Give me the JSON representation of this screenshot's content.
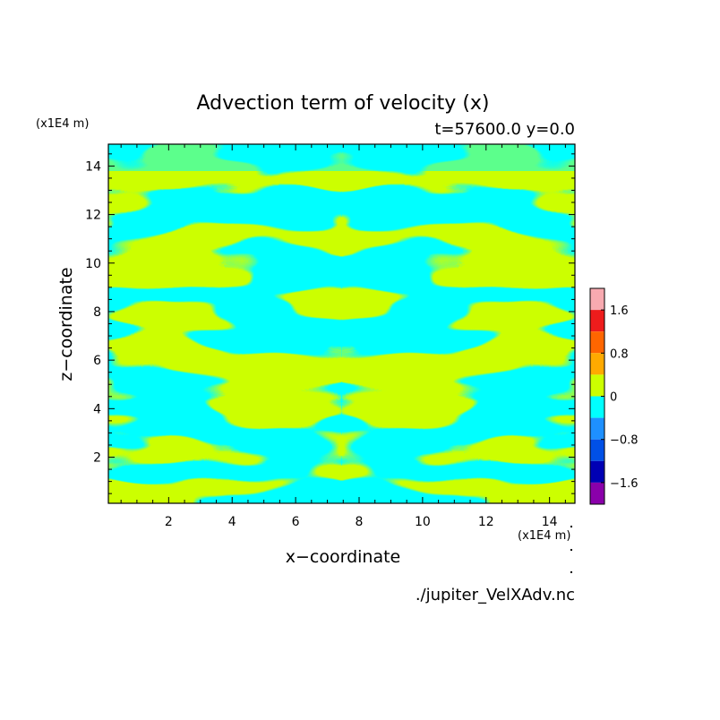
{
  "chart_data": {
    "type": "heatmap",
    "title": "Advection term of velocity (x)",
    "subtitle": "t=57600.0 y=0.0",
    "xlabel": "x−coordinate",
    "ylabel": "z−coordinate",
    "x_unit": "(x1E4 m)",
    "y_unit": "(x1E4 m)",
    "xlim": [
      0.1,
      14.8
    ],
    "ylim": [
      0.1,
      14.9
    ],
    "xticks": [
      "2",
      "4",
      "6",
      "8",
      "10",
      "12",
      "14"
    ],
    "yticks": [
      "2",
      "4",
      "6",
      "8",
      "10",
      "12",
      "14"
    ],
    "colorbar": {
      "levels": [
        {
          "color": "#f8aab0"
        },
        {
          "color": "#ee1c1c"
        },
        {
          "color": "#ff6600"
        },
        {
          "color": "#ffaa00"
        },
        {
          "color": "#ccff00"
        },
        {
          "color": "#00ffff"
        },
        {
          "color": "#1e90ff"
        },
        {
          "color": "#0050e6"
        },
        {
          "color": "#0000b4"
        },
        {
          "color": "#8a00aa"
        }
      ],
      "tick_labels": [
        "1.6",
        "0.8",
        "0",
        "−0.8",
        "−1.6"
      ]
    },
    "pattern_note": "field of positive (yellow-green) and negative (cyan) regions, roughly mirror-symmetric about x = 7.5"
  },
  "footer": {
    "source": "./jupiter_VelXAdv.nc"
  }
}
